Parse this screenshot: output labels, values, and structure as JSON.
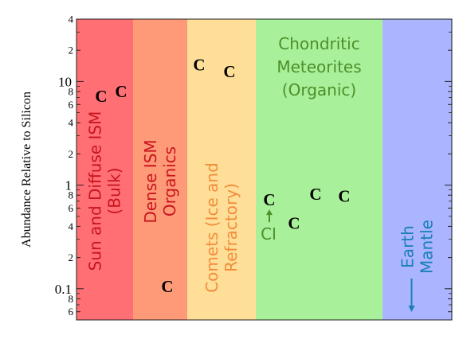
{
  "chart_data": {
    "type": "scatter",
    "title": "",
    "ylabel": "Abundance Relative to Silicon",
    "yscale": "log",
    "ylim": [
      0.05,
      40
    ],
    "major_ticks": [
      {
        "value": 0.1,
        "label": "0.1"
      },
      {
        "value": 1,
        "label": "1"
      },
      {
        "value": 10,
        "label": "10"
      }
    ],
    "minor_tick_labels": [
      {
        "value": 0.06,
        "label": "6"
      },
      {
        "value": 0.08,
        "label": "8"
      },
      {
        "value": 0.2,
        "label": "2"
      },
      {
        "value": 0.4,
        "label": "4"
      },
      {
        "value": 0.6,
        "label": "6"
      },
      {
        "value": 0.8,
        "label": "8"
      },
      {
        "value": 2,
        "label": "2"
      },
      {
        "value": 4,
        "label": "4"
      },
      {
        "value": 6,
        "label": "6"
      },
      {
        "value": 8,
        "label": "8"
      },
      {
        "value": 20,
        "label": "2"
      },
      {
        "value": 40,
        "label": "4"
      }
    ],
    "regions": [
      {
        "label_lines": [
          "Sun and Diffuse ISM",
          "(Bulk)"
        ],
        "fill": "#ff6f74",
        "text_color": "#c8141e",
        "orientation": "vertical"
      },
      {
        "label_lines": [
          "Dense ISM",
          "Organics"
        ],
        "fill": "#ff9a78",
        "text_color": "#c8141e",
        "orientation": "vertical"
      },
      {
        "label_lines": [
          "Comets (Ice and",
          "Refractory)"
        ],
        "fill": "#ffdf98",
        "text_color": "#f28c3c",
        "orientation": "vertical"
      },
      {
        "label_lines": [
          "Chondritic",
          "Meteorites",
          "(Organic)"
        ],
        "fill": "#a8f09a",
        "text_color": "#4f8f2a",
        "orientation": "horizontal"
      },
      {
        "label_lines": [
          "Earth",
          "Mantle"
        ],
        "fill": "#aab4ff",
        "text_color": "#1a7fb8",
        "orientation": "vertical"
      }
    ],
    "points": [
      {
        "region": 0,
        "symbol": "C",
        "y": 7.2
      },
      {
        "region": 0,
        "symbol": "C",
        "y": 8.0
      },
      {
        "region": 1,
        "symbol": "C",
        "y": 0.105
      },
      {
        "region": 2,
        "symbol": "C",
        "y": 14.5
      },
      {
        "region": 2,
        "symbol": "C",
        "y": 12.5
      },
      {
        "region": 3,
        "symbol": "C",
        "y": 0.72
      },
      {
        "region": 3,
        "symbol": "C",
        "y": 0.43
      },
      {
        "region": 3,
        "symbol": "C",
        "y": 0.82
      },
      {
        "region": 3,
        "symbol": "C",
        "y": 0.78
      }
    ],
    "annotations": [
      {
        "label": "CI",
        "region": 3,
        "arrow": "up",
        "color": "#4f8f2a"
      }
    ]
  }
}
